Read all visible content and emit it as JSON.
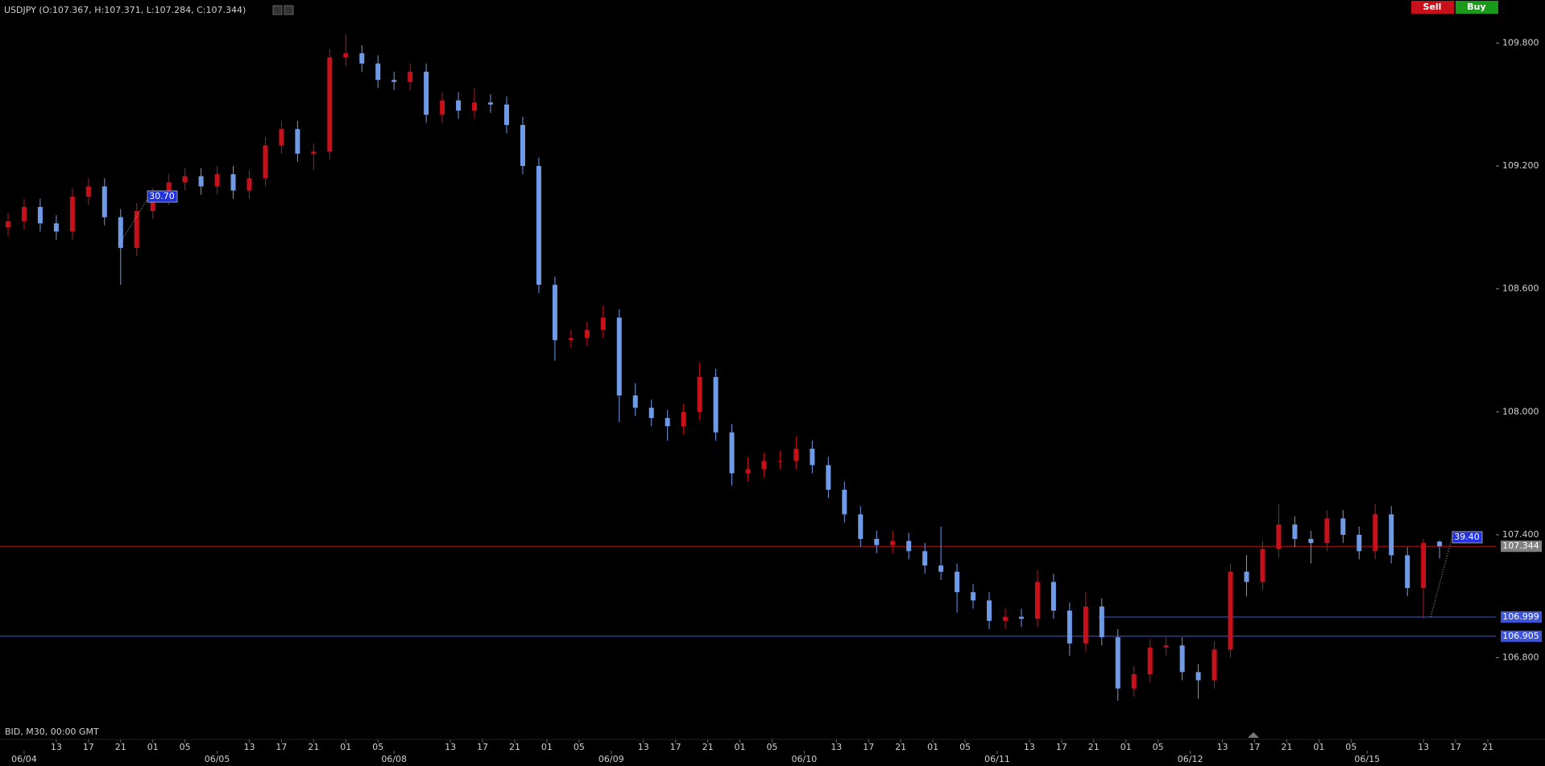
{
  "chart_data": {
    "type": "candlestick",
    "title": "USDJPY (O:107.367, H:107.371, L:107.284, C:107.344)",
    "footer": "BID, M30, 00:00 GMT",
    "buttons": [
      "Sell",
      "Buy"
    ],
    "annotations": [
      "30.70",
      "39.40"
    ],
    "up_color": "#c8101a",
    "down_color": "#6f9be6",
    "xlim": [
      6,
      192
    ],
    "ylim": [
      106.48,
      110.01
    ],
    "yticks": [
      {
        "value": 106.8,
        "label": "106.800"
      },
      {
        "value": 107.4,
        "label": "107.400"
      },
      {
        "value": 108.0,
        "label": "108.000"
      },
      {
        "value": 108.6,
        "label": "108.600"
      },
      {
        "value": 109.2,
        "label": "109.200"
      },
      {
        "value": 109.8,
        "label": "109.800"
      }
    ],
    "xticks": [
      {
        "value": 13,
        "label": "13"
      },
      {
        "value": 17,
        "label": "17"
      },
      {
        "value": 21,
        "label": "21"
      },
      {
        "value": 25,
        "label": "01"
      },
      {
        "value": 29,
        "label": "05"
      },
      {
        "value": 37,
        "label": "13"
      },
      {
        "value": 41,
        "label": "17"
      },
      {
        "value": 45,
        "label": "21"
      },
      {
        "value": 49,
        "label": "01"
      },
      {
        "value": 53,
        "label": "05"
      },
      {
        "value": 62,
        "label": "13"
      },
      {
        "value": 66,
        "label": "17"
      },
      {
        "value": 70,
        "label": "21"
      },
      {
        "value": 74,
        "label": "01"
      },
      {
        "value": 78,
        "label": "05"
      },
      {
        "value": 86,
        "label": "13"
      },
      {
        "value": 90,
        "label": "17"
      },
      {
        "value": 94,
        "label": "21"
      },
      {
        "value": 98,
        "label": "01"
      },
      {
        "value": 102,
        "label": "05"
      },
      {
        "value": 110,
        "label": "13"
      },
      {
        "value": 114,
        "label": "17"
      },
      {
        "value": 118,
        "label": "21"
      },
      {
        "value": 122,
        "label": "01"
      },
      {
        "value": 126,
        "label": "05"
      },
      {
        "value": 134,
        "label": "13"
      },
      {
        "value": 138,
        "label": "17"
      },
      {
        "value": 142,
        "label": "21"
      },
      {
        "value": 146,
        "label": "01"
      },
      {
        "value": 150,
        "label": "05"
      },
      {
        "value": 158,
        "label": "13"
      },
      {
        "value": 162,
        "label": "17"
      },
      {
        "value": 166,
        "label": "21"
      },
      {
        "value": 170,
        "label": "01"
      },
      {
        "value": 174,
        "label": "05"
      },
      {
        "value": 183,
        "label": "13"
      },
      {
        "value": 187,
        "label": "17"
      },
      {
        "value": 191,
        "label": "21"
      }
    ],
    "date_ticks": [
      {
        "value": 9,
        "label": "06/04"
      },
      {
        "value": 33,
        "label": "06/05"
      },
      {
        "value": 55,
        "label": "06/08"
      },
      {
        "value": 82,
        "label": "06/09"
      },
      {
        "value": 106,
        "label": "06/10"
      },
      {
        "value": 130,
        "label": "06/11"
      },
      {
        "value": 154,
        "label": "06/12"
      },
      {
        "value": 176,
        "label": "06/15"
      }
    ],
    "hlines": [
      {
        "value": 107.344,
        "color": "#b01018",
        "box": "#808080"
      },
      {
        "value": 106.999,
        "color": "#3f55d8",
        "box": "#3f55d8",
        "x_from": 142.6
      },
      {
        "value": 106.905,
        "color": "#3f55d8",
        "box": "#3f55d8"
      }
    ],
    "x": [
      7,
      9,
      11,
      13,
      15,
      17,
      19,
      21,
      23,
      25,
      27,
      29,
      31,
      33,
      35,
      37,
      39,
      41,
      43,
      45,
      47,
      49,
      51,
      53,
      55,
      57,
      59,
      61,
      63,
      65,
      67,
      69,
      71,
      73,
      75,
      77,
      79,
      81,
      83,
      85,
      87,
      89,
      91,
      93,
      95,
      97,
      99,
      101,
      103,
      105,
      107,
      109,
      111,
      113,
      115,
      117,
      119,
      121,
      123,
      125,
      127,
      129,
      131,
      133,
      135,
      137,
      139,
      141,
      143,
      145,
      147,
      149,
      151,
      153,
      155,
      157,
      159,
      161,
      163,
      165,
      167,
      169,
      171,
      173,
      175,
      177,
      179,
      181,
      183,
      185
    ],
    "candles": [
      [
        108.9,
        108.97,
        108.86,
        108.93
      ],
      [
        108.93,
        109.04,
        108.89,
        109.0
      ],
      [
        109.0,
        109.04,
        108.88,
        108.92
      ],
      [
        108.92,
        108.96,
        108.84,
        108.88
      ],
      [
        108.88,
        109.09,
        108.84,
        109.05
      ],
      [
        109.05,
        109.14,
        109.01,
        109.1
      ],
      [
        109.1,
        109.14,
        108.91,
        108.95
      ],
      [
        108.95,
        108.99,
        108.62,
        108.8
      ],
      [
        108.8,
        109.02,
        108.76,
        108.98
      ],
      [
        108.98,
        109.09,
        108.94,
        109.05
      ],
      [
        109.05,
        109.16,
        109.01,
        109.12
      ],
      [
        109.12,
        109.19,
        109.08,
        109.15
      ],
      [
        109.15,
        109.19,
        109.06,
        109.1
      ],
      [
        109.1,
        109.2,
        109.06,
        109.16
      ],
      [
        109.16,
        109.2,
        109.04,
        109.08
      ],
      [
        109.08,
        109.18,
        109.04,
        109.14
      ],
      [
        109.14,
        109.34,
        109.1,
        109.3
      ],
      [
        109.3,
        109.42,
        109.26,
        109.38
      ],
      [
        109.38,
        109.42,
        109.22,
        109.26
      ],
      [
        109.26,
        109.31,
        109.18,
        109.27
      ],
      [
        109.27,
        109.77,
        109.23,
        109.73
      ],
      [
        109.73,
        109.84,
        109.69,
        109.75
      ],
      [
        109.75,
        109.79,
        109.66,
        109.7
      ],
      [
        109.7,
        109.74,
        109.58,
        109.62
      ],
      [
        109.62,
        109.66,
        109.57,
        109.61
      ],
      [
        109.61,
        109.7,
        109.57,
        109.66
      ],
      [
        109.66,
        109.7,
        109.41,
        109.45
      ],
      [
        109.45,
        109.56,
        109.41,
        109.52
      ],
      [
        109.52,
        109.56,
        109.43,
        109.47
      ],
      [
        109.47,
        109.58,
        109.43,
        109.51
      ],
      [
        109.51,
        109.55,
        109.46,
        109.5
      ],
      [
        109.5,
        109.54,
        109.36,
        109.4
      ],
      [
        109.4,
        109.44,
        109.16,
        109.2
      ],
      [
        109.2,
        109.24,
        108.58,
        108.62
      ],
      [
        108.62,
        108.66,
        108.25,
        108.35
      ],
      [
        108.35,
        108.4,
        108.31,
        108.36
      ],
      [
        108.36,
        108.44,
        108.32,
        108.4
      ],
      [
        108.4,
        108.52,
        108.36,
        108.46
      ],
      [
        108.46,
        108.5,
        107.95,
        108.08
      ],
      [
        108.08,
        108.14,
        107.98,
        108.02
      ],
      [
        108.02,
        108.06,
        107.93,
        107.97
      ],
      [
        107.97,
        108.01,
        107.86,
        107.93
      ],
      [
        107.93,
        108.04,
        107.89,
        108.0
      ],
      [
        108.0,
        108.24,
        107.96,
        108.17
      ],
      [
        108.17,
        108.21,
        107.86,
        107.9
      ],
      [
        107.9,
        107.94,
        107.64,
        107.7
      ],
      [
        107.7,
        107.78,
        107.66,
        107.72
      ],
      [
        107.72,
        107.8,
        107.68,
        107.76
      ],
      [
        107.76,
        107.81,
        107.72,
        107.76
      ],
      [
        107.76,
        107.88,
        107.72,
        107.82
      ],
      [
        107.82,
        107.86,
        107.7,
        107.74
      ],
      [
        107.74,
        107.78,
        107.58,
        107.62
      ],
      [
        107.62,
        107.66,
        107.46,
        107.5
      ],
      [
        107.5,
        107.54,
        107.34,
        107.38
      ],
      [
        107.38,
        107.42,
        107.31,
        107.35
      ],
      [
        107.35,
        107.42,
        107.31,
        107.37
      ],
      [
        107.37,
        107.41,
        107.28,
        107.32
      ],
      [
        107.32,
        107.36,
        107.21,
        107.25
      ],
      [
        107.25,
        107.44,
        107.18,
        107.22
      ],
      [
        107.22,
        107.26,
        107.02,
        107.12
      ],
      [
        107.12,
        107.16,
        107.04,
        107.08
      ],
      [
        107.08,
        107.12,
        106.94,
        106.98
      ],
      [
        106.98,
        107.04,
        106.94,
        107.0
      ],
      [
        107.0,
        107.04,
        106.95,
        106.99
      ],
      [
        106.99,
        107.23,
        106.95,
        107.17
      ],
      [
        107.17,
        107.21,
        106.99,
        107.03
      ],
      [
        107.03,
        107.07,
        106.81,
        106.87
      ],
      [
        106.87,
        107.12,
        106.83,
        107.05
      ],
      [
        107.05,
        107.09,
        106.86,
        106.9
      ],
      [
        106.9,
        106.94,
        106.59,
        106.65
      ],
      [
        106.65,
        106.76,
        106.61,
        106.72
      ],
      [
        106.72,
        106.89,
        106.68,
        106.85
      ],
      [
        106.85,
        106.9,
        106.81,
        106.86
      ],
      [
        106.86,
        106.9,
        106.69,
        106.73
      ],
      [
        106.73,
        106.77,
        106.6,
        106.69
      ],
      [
        106.69,
        106.88,
        106.65,
        106.84
      ],
      [
        106.84,
        107.26,
        106.8,
        107.22
      ],
      [
        107.22,
        107.3,
        107.1,
        107.17
      ],
      [
        107.17,
        107.37,
        107.13,
        107.33
      ],
      [
        107.33,
        107.55,
        107.29,
        107.45
      ],
      [
        107.45,
        107.49,
        107.34,
        107.38
      ],
      [
        107.38,
        107.42,
        107.26,
        107.36
      ],
      [
        107.36,
        107.52,
        107.32,
        107.48
      ],
      [
        107.48,
        107.52,
        107.36,
        107.4
      ],
      [
        107.4,
        107.44,
        107.28,
        107.32
      ],
      [
        107.32,
        107.55,
        107.28,
        107.5
      ],
      [
        107.5,
        107.54,
        107.26,
        107.3
      ],
      [
        107.3,
        107.34,
        107.1,
        107.14
      ],
      [
        107.14,
        107.38,
        106.99,
        107.36
      ],
      [
        107.367,
        107.371,
        107.284,
        107.344
      ]
    ]
  }
}
